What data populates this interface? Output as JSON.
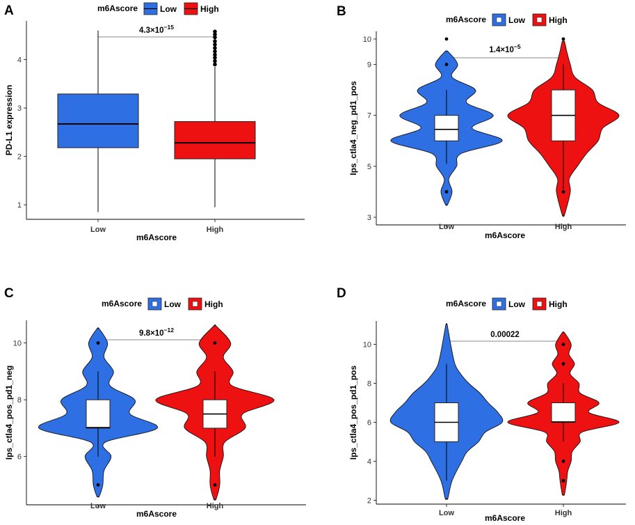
{
  "chart_data": [
    {
      "panel": "A",
      "type": "box",
      "legend": {
        "title": "m6Ascore",
        "items": [
          {
            "label": "Low",
            "color": "#2f6fe4"
          },
          {
            "label": "High",
            "color": "#ee1111"
          }
        ]
      },
      "xlabel": "m6Ascore",
      "ylabel": "PD-L1 expression",
      "categories": [
        "Low",
        "High"
      ],
      "ylim": [
        0.7,
        4.8
      ],
      "yticks": [
        1,
        2,
        3,
        4
      ],
      "pvalue": {
        "mantissa": "4.3",
        "exponent": "−15"
      },
      "groups": [
        {
          "name": "Low",
          "color": "#2f6fe4",
          "whisker_low": 0.85,
          "q1": 2.18,
          "median": 2.67,
          "q3": 3.29,
          "whisker_high": 4.6,
          "outliers": []
        },
        {
          "name": "High",
          "color": "#ee1111",
          "whisker_low": 0.95,
          "q1": 1.95,
          "median": 2.28,
          "q3": 2.72,
          "whisker_high": 3.85,
          "outliers": [
            3.9,
            3.97,
            4.04,
            4.1,
            4.17,
            4.24,
            4.31,
            4.38,
            4.46,
            4.52,
            4.58
          ]
        }
      ]
    },
    {
      "panel": "B",
      "type": "violin",
      "legend": {
        "title": "m6Ascore",
        "items": [
          {
            "label": "Low",
            "color": "#2f6fe4"
          },
          {
            "label": "High",
            "color": "#ee1111"
          }
        ]
      },
      "xlabel": "m6Ascore",
      "ylabel": "Ips_ctla4_neg_pd1_pos",
      "categories": [
        "Low",
        "High"
      ],
      "ylim": [
        2.7,
        10.3
      ],
      "yticks": [
        3,
        5,
        7,
        9,
        10
      ],
      "pvalue": {
        "mantissa": "1.4",
        "exponent": "−5"
      },
      "groups": [
        {
          "name": "Low",
          "color": "#2f6fe4",
          "min": 3.5,
          "max": 9.5,
          "density": [
            [
              3.5,
              0.02
            ],
            [
              4,
              0.1
            ],
            [
              4.5,
              0.04
            ],
            [
              5,
              0.18
            ],
            [
              5.5,
              0.26
            ],
            [
              6,
              1.0
            ],
            [
              6.5,
              0.46
            ],
            [
              7,
              0.84
            ],
            [
              7.5,
              0.36
            ],
            [
              8,
              0.52
            ],
            [
              8.5,
              0.1
            ],
            [
              9,
              0.2
            ],
            [
              9.5,
              0.03
            ]
          ],
          "box": {
            "q1": 6,
            "median": 6.45,
            "q3": 7,
            "whisker_low": 5.1,
            "whisker_high": 8
          },
          "points": [
            4,
            9,
            10
          ]
        },
        {
          "name": "High",
          "color": "#ee1111",
          "min": 3.1,
          "max": 9.9,
          "density": [
            [
              3.1,
              0.02
            ],
            [
              4,
              0.12
            ],
            [
              4.5,
              0.1
            ],
            [
              5,
              0.24
            ],
            [
              5.5,
              0.4
            ],
            [
              6,
              0.6
            ],
            [
              6.5,
              0.68
            ],
            [
              7,
              0.96
            ],
            [
              7.5,
              0.6
            ],
            [
              8,
              0.5
            ],
            [
              8.5,
              0.2
            ],
            [
              9,
              0.12
            ],
            [
              9.5,
              0.06
            ],
            [
              9.9,
              0.02
            ]
          ],
          "box": {
            "q1": 6,
            "median": 7,
            "q3": 8,
            "whisker_low": 4.1,
            "whisker_high": 9
          },
          "points": [
            4,
            10
          ]
        }
      ]
    },
    {
      "panel": "C",
      "type": "violin",
      "legend": {
        "title": "m6Ascore",
        "items": [
          {
            "label": "Low",
            "color": "#2f6fe4"
          },
          {
            "label": "High",
            "color": "#ee1111"
          }
        ]
      },
      "xlabel": "m6Ascore",
      "ylabel": "Ips_ctla4_pos_pd1_neg",
      "categories": [
        "Low",
        "High"
      ],
      "ylim": [
        4.3,
        10.8
      ],
      "yticks": [
        6,
        8,
        10
      ],
      "pvalue": {
        "mantissa": "9.8",
        "exponent": "−12"
      },
      "groups": [
        {
          "name": "Low",
          "color": "#2f6fe4",
          "min": 4.6,
          "max": 10.5,
          "density": [
            [
              4.6,
              0.02
            ],
            [
              5,
              0.08
            ],
            [
              5.5,
              0.1
            ],
            [
              6,
              0.22
            ],
            [
              6.5,
              0.12
            ],
            [
              7,
              1.0
            ],
            [
              7.5,
              0.54
            ],
            [
              8,
              0.62
            ],
            [
              8.5,
              0.2
            ],
            [
              9,
              0.26
            ],
            [
              9.5,
              0.1
            ],
            [
              10,
              0.16
            ],
            [
              10.5,
              0.02
            ]
          ],
          "box": {
            "q1": 7,
            "median": 7.02,
            "q3": 8,
            "whisker_low": 6,
            "whisker_high": 9
          },
          "points": [
            5,
            10
          ]
        },
        {
          "name": "High",
          "color": "#ee1111",
          "min": 4.5,
          "max": 10.6,
          "density": [
            [
              4.5,
              0.02
            ],
            [
              5,
              0.08
            ],
            [
              5.5,
              0.08
            ],
            [
              6,
              0.14
            ],
            [
              6.5,
              0.16
            ],
            [
              7,
              0.5
            ],
            [
              7.5,
              0.46
            ],
            [
              8,
              0.98
            ],
            [
              8.5,
              0.28
            ],
            [
              9,
              0.3
            ],
            [
              9.5,
              0.14
            ],
            [
              10,
              0.26
            ],
            [
              10.6,
              0.02
            ]
          ],
          "box": {
            "q1": 7,
            "median": 7.5,
            "q3": 8,
            "whisker_low": 6,
            "whisker_high": 9
          },
          "points": [
            5,
            10
          ]
        }
      ]
    },
    {
      "panel": "D",
      "type": "violin",
      "legend": {
        "title": "m6Ascore",
        "items": [
          {
            "label": "Low",
            "color": "#2f6fe4"
          },
          {
            "label": "High",
            "color": "#ee1111"
          }
        ]
      },
      "xlabel": "m6Ascore",
      "ylabel": "Ips_ctla4_pos_pd1_pos",
      "categories": [
        "Low",
        "High"
      ],
      "ylim": [
        1.8,
        11.2
      ],
      "yticks": [
        2,
        4,
        6,
        8,
        10
      ],
      "pvalue": {
        "text": "0.00022"
      },
      "groups": [
        {
          "name": "Low",
          "color": "#2f6fe4",
          "min": 2.1,
          "max": 11,
          "density": [
            [
              2.1,
              0.02
            ],
            [
              3,
              0.08
            ],
            [
              4,
              0.22
            ],
            [
              4.5,
              0.3
            ],
            [
              5,
              0.46
            ],
            [
              5.5,
              0.56
            ],
            [
              6,
              0.8
            ],
            [
              6.5,
              0.74
            ],
            [
              7,
              0.6
            ],
            [
              7.5,
              0.48
            ],
            [
              8,
              0.32
            ],
            [
              8.5,
              0.2
            ],
            [
              9,
              0.12
            ],
            [
              10,
              0.06
            ],
            [
              11,
              0.01
            ]
          ],
          "box": {
            "q1": 5,
            "median": 6,
            "q3": 7,
            "whisker_low": 3,
            "whisker_high": 9
          },
          "points": []
        },
        {
          "name": "High",
          "color": "#ee1111",
          "min": 2.3,
          "max": 10.6,
          "density": [
            [
              2.3,
              0.02
            ],
            [
              3,
              0.06
            ],
            [
              3.5,
              0.08
            ],
            [
              4,
              0.14
            ],
            [
              4.5,
              0.16
            ],
            [
              5,
              0.3
            ],
            [
              5.5,
              0.34
            ],
            [
              6,
              1.0
            ],
            [
              6.5,
              0.46
            ],
            [
              7,
              0.64
            ],
            [
              7.5,
              0.3
            ],
            [
              8,
              0.28
            ],
            [
              8.5,
              0.12
            ],
            [
              9,
              0.2
            ],
            [
              9.5,
              0.1
            ],
            [
              10,
              0.14
            ],
            [
              10.6,
              0.02
            ]
          ],
          "box": {
            "q1": 6,
            "median": 6.02,
            "q3": 7,
            "whisker_low": 5,
            "whisker_high": 8
          },
          "points": [
            3,
            4,
            9,
            10
          ]
        }
      ]
    }
  ]
}
